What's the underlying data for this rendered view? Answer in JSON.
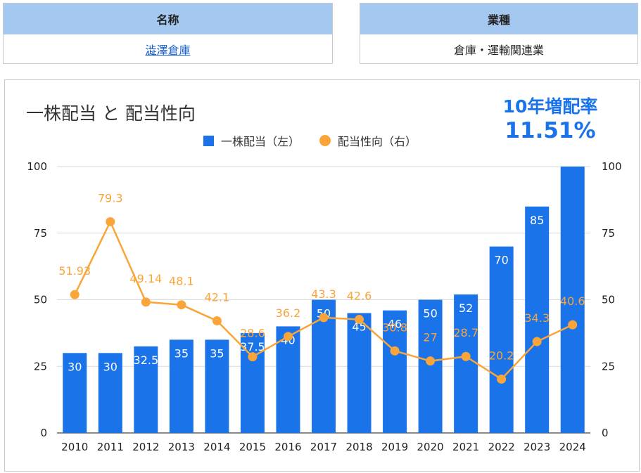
{
  "info": {
    "name_header": "名称",
    "name_value": "澁澤倉庫",
    "industry_header": "業種",
    "industry_value": "倉庫・運輸関連業"
  },
  "chart": {
    "title": "一株配当 と 配当性向",
    "growth_label": "10年増配率",
    "growth_value": "11.51%",
    "legend_bar": "一株配当（左）",
    "legend_line": "配当性向（右）"
  },
  "colors": {
    "bar": "#1a73e8",
    "line": "#f9a53a",
    "header_bg": "#a4c8f0",
    "growth": "#1a73e8"
  },
  "chart_data": {
    "type": "bar",
    "categories": [
      "2010",
      "2011",
      "2012",
      "2013",
      "2014",
      "2015",
      "2016",
      "2017",
      "2018",
      "2019",
      "2020",
      "2021",
      "2022",
      "2023",
      "2024"
    ],
    "series": [
      {
        "name": "一株配当（左）",
        "type": "bar",
        "axis": "left",
        "values": [
          30,
          30,
          32.5,
          35,
          35,
          37.5,
          40,
          50,
          45,
          46,
          50,
          52,
          70,
          85,
          100
        ],
        "labels": [
          "30",
          "30",
          "32.5",
          "35",
          "35",
          "37.5",
          "40",
          "50",
          "45",
          "46",
          "50",
          "52",
          "70",
          "85",
          ""
        ]
      },
      {
        "name": "配当性向（右）",
        "type": "line",
        "axis": "right",
        "values": [
          51.93,
          79.3,
          49.14,
          48.1,
          42.1,
          28.6,
          36.2,
          43.3,
          42.6,
          30.8,
          27,
          28.7,
          20.2,
          34.3,
          40.6
        ],
        "labels": [
          "51.93",
          "79.3",
          "49.14",
          "48.1",
          "42.1",
          "28.6",
          "36.2",
          "43.3",
          "42.6",
          "30.8",
          "27",
          "28.7",
          "20.2",
          "34.3",
          "40.6"
        ]
      }
    ],
    "ylim_left": [
      0,
      100
    ],
    "ylim_right": [
      0,
      100
    ],
    "yticks": [
      "0",
      "25",
      "50",
      "75",
      "100"
    ],
    "grid": true,
    "legend_position": "top"
  }
}
